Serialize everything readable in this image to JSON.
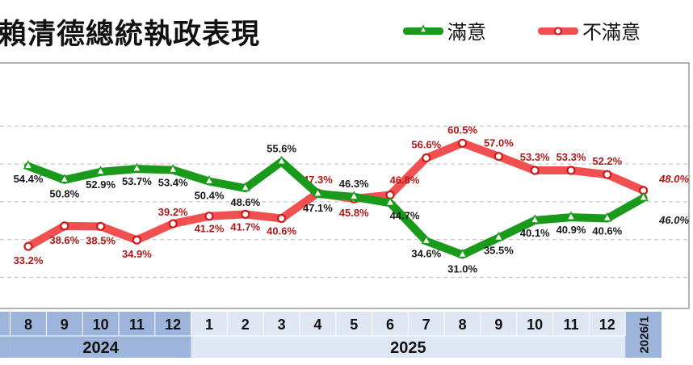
{
  "chart_data": {
    "type": "line",
    "title": "賴清德總統執政表現",
    "categories": [
      "8",
      "9",
      "10",
      "11",
      "12",
      "1",
      "2",
      "3",
      "4",
      "5",
      "6",
      "7",
      "8",
      "9",
      "10",
      "11",
      "12",
      "2026/1"
    ],
    "year_groups": [
      {
        "label": "2024",
        "months": 5,
        "color": "#9db5da"
      },
      {
        "label": "2025",
        "months": 12,
        "color": "#dfe7f2"
      },
      {
        "label": "",
        "months": 1,
        "color": "#9db5da"
      }
    ],
    "series": [
      {
        "name": "滿意",
        "color": "#1a9a1a",
        "marker": "triangle",
        "values": [
          54.4,
          50.8,
          52.9,
          53.7,
          53.4,
          50.4,
          48.6,
          55.6,
          47.1,
          46.3,
          44.7,
          34.6,
          31.0,
          35.5,
          40.1,
          40.9,
          40.6,
          46.0
        ],
        "labels": [
          "54.4%",
          "50.8%",
          "52.9%",
          "53.7%",
          "53.4%",
          "50.4%",
          "48.6%",
          "55.6%",
          "47.1%",
          "46.3%",
          "44.7%",
          "34.6%",
          "31.0%",
          "35.5%",
          "40.1%",
          "40.9%",
          "40.6%",
          "46.0%"
        ]
      },
      {
        "name": "不滿意",
        "color": "#f05050",
        "marker": "circle",
        "values": [
          33.2,
          38.6,
          38.5,
          34.9,
          39.2,
          41.2,
          41.7,
          40.6,
          47.3,
          45.8,
          46.8,
          56.6,
          60.5,
          57.0,
          53.3,
          53.3,
          52.2,
          48.0
        ],
        "labels": [
          "33.2%",
          "38.6%",
          "38.5%",
          "34.9%",
          "39.2%",
          "41.2%",
          "41.7%",
          "40.6%",
          "47.3%",
          "45.8%",
          "46.8%",
          "56.6%",
          "60.5%",
          "57.0%",
          "53.3%",
          "53.3%",
          "52.2%",
          "48.0%"
        ]
      }
    ],
    "ylim": [
      16.8,
      81.7
    ],
    "gridlines": [
      25,
      35,
      45,
      55,
      65
    ],
    "grid": true,
    "legend": "top-right"
  }
}
